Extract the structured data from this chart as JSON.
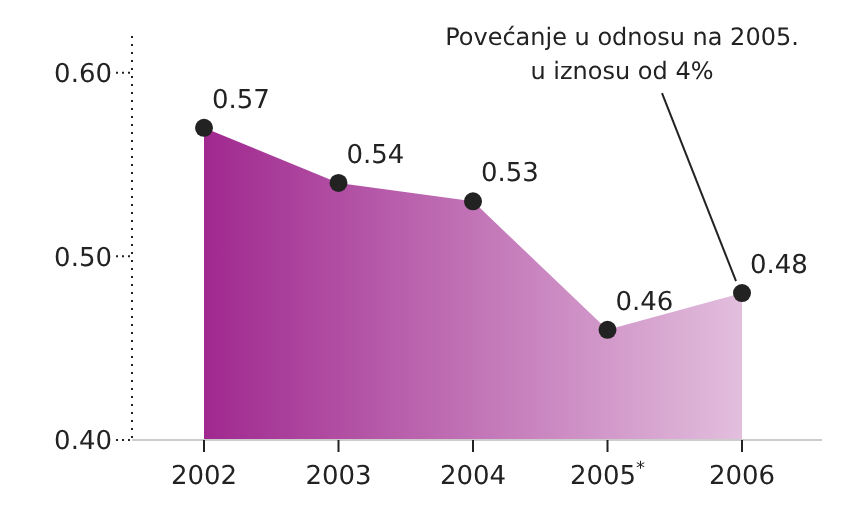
{
  "chart_data": {
    "type": "area",
    "categories": [
      "2002",
      "2003",
      "2004",
      "2005$^{*}$",
      "2006"
    ],
    "series": [
      {
        "color": "#a0288f",
        "values": [
          0.57,
          0.54,
          0.53,
          0.46,
          0.48
        ]
      }
    ],
    "ylim": [
      0.4,
      0.62
    ],
    "yticks": [
      {
        "value": 0.4,
        "label": "0.40"
      },
      {
        "value": 0.5,
        "label": "0.50"
      },
      {
        "value": 0.6,
        "label": "0.60"
      }
    ],
    "data_labels": true,
    "marker": "circle",
    "grid": false,
    "legend": false,
    "annotations": [
      {
        "text": "Povećanje u odnosu na 2005.\nu iznosu od 4%",
        "x": "2006",
        "y": 0.48
      }
    ]
  }
}
